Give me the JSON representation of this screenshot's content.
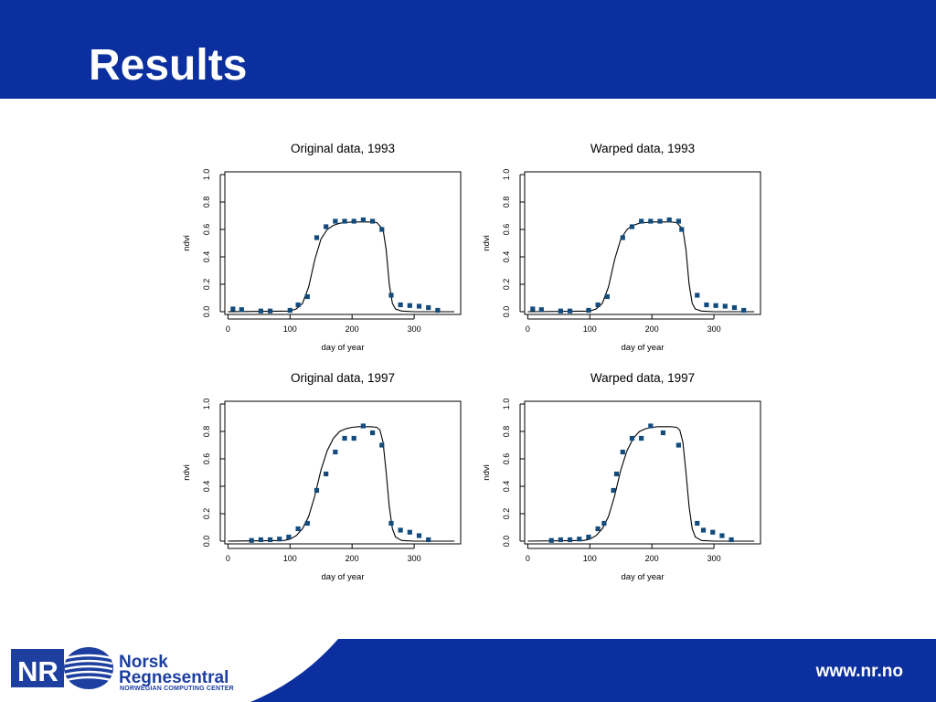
{
  "slide": {
    "title": "Results"
  },
  "footer": {
    "logo_text": "NR",
    "org_name_line1": "Norsk",
    "org_name_line2": "Regnesentral",
    "org_tagline": "NORWEGIAN COMPUTING CENTER",
    "url": "www.nr.no",
    "colors": {
      "brand": "#0b2f9e",
      "logo_text": "#1d3fa0"
    }
  },
  "chart_data": [
    {
      "type": "scatter",
      "title": "Original data, 1993",
      "xlabel": "day of year",
      "ylabel": "ndvi",
      "xlim": [
        -5,
        375
      ],
      "ylim": [
        -0.02,
        1.02
      ],
      "xticks": [
        0,
        100,
        200,
        300
      ],
      "yticks": [
        0.0,
        0.2,
        0.4,
        0.6,
        0.8,
        1.0
      ],
      "grid": false,
      "series": [
        {
          "kind": "points",
          "color": "#124b7c",
          "x": [
            8,
            22,
            53,
            68,
            100,
            113,
            128,
            143,
            158,
            173,
            188,
            203,
            218,
            233,
            248,
            263,
            278,
            293,
            308,
            323,
            338
          ],
          "y": [
            0.02,
            0.015,
            0.005,
            0.005,
            0.01,
            0.05,
            0.11,
            0.54,
            0.62,
            0.66,
            0.66,
            0.66,
            0.67,
            0.66,
            0.6,
            0.12,
            0.05,
            0.045,
            0.04,
            0.03,
            0.01
          ]
        },
        {
          "kind": "line",
          "color": "#000000",
          "x": [
            0,
            100,
            110,
            120,
            130,
            140,
            150,
            160,
            170,
            180,
            190,
            200,
            210,
            220,
            230,
            240,
            250,
            255,
            260,
            265,
            270,
            280,
            300,
            330,
            365
          ],
          "y": [
            0.0,
            0.005,
            0.02,
            0.06,
            0.18,
            0.38,
            0.53,
            0.6,
            0.63,
            0.645,
            0.65,
            0.655,
            0.655,
            0.655,
            0.655,
            0.65,
            0.6,
            0.45,
            0.2,
            0.06,
            0.02,
            0.005,
            0.0,
            0.0,
            0.0
          ]
        }
      ]
    },
    {
      "type": "scatter",
      "title": "Warped data, 1993",
      "xlabel": "day of year",
      "ylabel": "ndvi",
      "xlim": [
        -5,
        375
      ],
      "ylim": [
        -0.02,
        1.02
      ],
      "xticks": [
        0,
        100,
        200,
        300
      ],
      "yticks": [
        0.0,
        0.2,
        0.4,
        0.6,
        0.8,
        1.0
      ],
      "grid": false,
      "series": [
        {
          "kind": "points",
          "color": "#124b7c",
          "x": [
            8,
            22,
            53,
            68,
            98,
            113,
            128,
            153,
            168,
            183,
            198,
            213,
            228,
            243,
            248,
            273,
            288,
            303,
            318,
            333,
            348
          ],
          "y": [
            0.02,
            0.015,
            0.005,
            0.005,
            0.01,
            0.05,
            0.11,
            0.54,
            0.62,
            0.66,
            0.66,
            0.66,
            0.67,
            0.66,
            0.6,
            0.12,
            0.05,
            0.045,
            0.04,
            0.03,
            0.01
          ]
        },
        {
          "kind": "line",
          "color": "#000000",
          "x": [
            0,
            100,
            110,
            120,
            130,
            140,
            150,
            160,
            170,
            180,
            190,
            200,
            210,
            220,
            230,
            240,
            250,
            255,
            260,
            265,
            270,
            280,
            300,
            330,
            365
          ],
          "y": [
            0.0,
            0.005,
            0.02,
            0.06,
            0.18,
            0.38,
            0.53,
            0.6,
            0.63,
            0.645,
            0.65,
            0.655,
            0.655,
            0.655,
            0.655,
            0.65,
            0.6,
            0.45,
            0.2,
            0.06,
            0.02,
            0.005,
            0.0,
            0.0,
            0.0
          ]
        }
      ]
    },
    {
      "type": "scatter",
      "title": "Original data, 1997",
      "xlabel": "day of year",
      "ylabel": "ndvi",
      "xlim": [
        -5,
        375
      ],
      "ylim": [
        -0.02,
        1.02
      ],
      "xticks": [
        0,
        100,
        200,
        300
      ],
      "yticks": [
        0.0,
        0.2,
        0.4,
        0.6,
        0.8,
        1.0
      ],
      "grid": false,
      "series": [
        {
          "kind": "points",
          "color": "#124b7c",
          "x": [
            38,
            53,
            68,
            83,
            98,
            113,
            128,
            143,
            158,
            173,
            188,
            203,
            218,
            233,
            248,
            263,
            278,
            293,
            308,
            323
          ],
          "y": [
            0.005,
            0.01,
            0.01,
            0.015,
            0.03,
            0.09,
            0.13,
            0.37,
            0.49,
            0.65,
            0.75,
            0.75,
            0.84,
            0.79,
            0.7,
            0.13,
            0.08,
            0.065,
            0.04,
            0.01
          ]
        },
        {
          "kind": "line",
          "color": "#000000",
          "x": [
            0,
            90,
            100,
            110,
            120,
            130,
            140,
            150,
            160,
            170,
            180,
            190,
            200,
            210,
            220,
            230,
            240,
            245,
            250,
            255,
            260,
            265,
            270,
            280,
            300,
            330,
            365
          ],
          "y": [
            0.0,
            0.005,
            0.015,
            0.04,
            0.09,
            0.18,
            0.33,
            0.52,
            0.66,
            0.75,
            0.8,
            0.82,
            0.83,
            0.835,
            0.835,
            0.835,
            0.83,
            0.81,
            0.72,
            0.5,
            0.25,
            0.09,
            0.03,
            0.005,
            0.0,
            0.0,
            0.0
          ]
        }
      ]
    },
    {
      "type": "scatter",
      "title": "Warped data, 1997",
      "xlabel": "day of year",
      "ylabel": "ndvi",
      "xlim": [
        -5,
        375
      ],
      "ylim": [
        -0.02,
        1.02
      ],
      "xticks": [
        0,
        100,
        200,
        300
      ],
      "yticks": [
        0.0,
        0.2,
        0.4,
        0.6,
        0.8,
        1.0
      ],
      "grid": false,
      "series": [
        {
          "kind": "points",
          "color": "#124b7c",
          "x": [
            38,
            53,
            68,
            83,
            98,
            113,
            123,
            138,
            143,
            153,
            168,
            183,
            198,
            218,
            243,
            273,
            283,
            298,
            313,
            328
          ],
          "y": [
            0.005,
            0.01,
            0.01,
            0.015,
            0.03,
            0.09,
            0.13,
            0.37,
            0.49,
            0.65,
            0.75,
            0.75,
            0.84,
            0.79,
            0.7,
            0.13,
            0.08,
            0.065,
            0.04,
            0.01
          ]
        },
        {
          "kind": "line",
          "color": "#000000",
          "x": [
            0,
            90,
            100,
            110,
            120,
            130,
            140,
            150,
            160,
            170,
            180,
            190,
            200,
            210,
            220,
            230,
            240,
            245,
            250,
            255,
            260,
            265,
            270,
            280,
            300,
            330,
            365
          ],
          "y": [
            0.0,
            0.005,
            0.015,
            0.04,
            0.09,
            0.18,
            0.33,
            0.52,
            0.66,
            0.75,
            0.8,
            0.82,
            0.83,
            0.835,
            0.835,
            0.835,
            0.83,
            0.81,
            0.72,
            0.5,
            0.25,
            0.09,
            0.03,
            0.005,
            0.0,
            0.0,
            0.0
          ]
        }
      ]
    }
  ]
}
